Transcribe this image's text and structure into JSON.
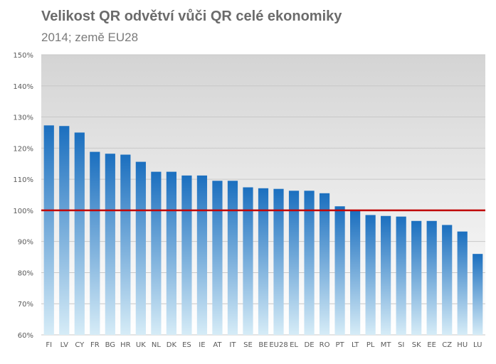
{
  "chart_data": {
    "type": "bar",
    "title": "Velikost QR odvětví vůči QR celé ekonomiky",
    "subtitle": "2014; země EU28",
    "categories": [
      "FI",
      "LV",
      "CY",
      "FR",
      "BG",
      "HR",
      "UK",
      "NL",
      "DK",
      "ES",
      "IE",
      "AT",
      "IT",
      "SE",
      "BE",
      "EU28",
      "EL",
      "DE",
      "RO",
      "PT",
      "LT",
      "PL",
      "MT",
      "SI",
      "SK",
      "EE",
      "CZ",
      "HU",
      "LU"
    ],
    "values": [
      127.3,
      127.1,
      125.0,
      118.8,
      118.2,
      117.9,
      115.6,
      112.4,
      112.4,
      111.2,
      111.2,
      109.5,
      109.5,
      107.4,
      107.1,
      106.9,
      106.3,
      106.3,
      105.5,
      101.3,
      100.0,
      98.5,
      98.2,
      98.0,
      96.6,
      96.6,
      95.3,
      93.2,
      86.0
    ],
    "reference_line": 100,
    "ylim": [
      60,
      150
    ],
    "ytick_step": 10,
    "ytick_suffix": "%",
    "grid": true,
    "colors": {
      "bar_top": "#1b6fbf",
      "bar_bottom": "#d6ecf7",
      "reference_line": "#c00000",
      "plot_bg_top": "#d4d4d4",
      "plot_bg_bottom": "#ffffff",
      "gridline": "#c8c8c8"
    }
  }
}
